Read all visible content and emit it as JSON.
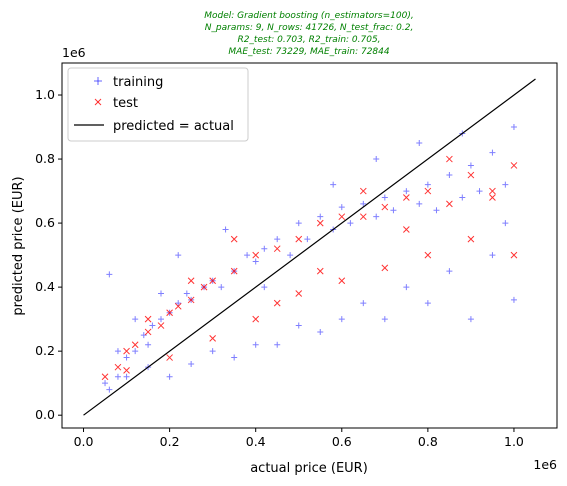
{
  "chart_data": {
    "type": "scatter",
    "title_lines": [
      "Model: Gradient boosting (n_estimators=100),",
      "N_params: 9, N_rows: 41726, N_test_frac: 0.2,",
      "R2_test: 0.703, R2_train: 0.705,",
      "MAE_test: 73229, MAE_train: 72844"
    ],
    "xlabel": "actual price (EUR)",
    "ylabel": "predicted price (EUR)",
    "x_offset_text": "1e6",
    "y_offset_text": "1e6",
    "xlim": [
      -0.05,
      1.1
    ],
    "ylim": [
      -0.04,
      1.1
    ],
    "x_ticks": [
      0.0,
      0.2,
      0.4,
      0.6,
      0.8,
      1.0
    ],
    "x_tick_labels": [
      "0.0",
      "0.2",
      "0.4",
      "0.6",
      "0.8",
      "1.0"
    ],
    "y_ticks": [
      0.0,
      0.2,
      0.4,
      0.6,
      0.8,
      1.0
    ],
    "y_tick_labels": [
      "0.0",
      "0.2",
      "0.4",
      "0.6",
      "0.8",
      "1.0"
    ],
    "legend_position": "upper-left",
    "series": [
      {
        "name": "training",
        "marker": "+",
        "color": "#0000ff",
        "x": [
          0.05,
          0.06,
          0.08,
          0.1,
          0.12,
          0.14,
          0.15,
          0.16,
          0.18,
          0.2,
          0.22,
          0.24,
          0.25,
          0.28,
          0.3,
          0.32,
          0.35,
          0.38,
          0.4,
          0.42,
          0.45,
          0.48,
          0.5,
          0.52,
          0.55,
          0.58,
          0.6,
          0.62,
          0.65,
          0.68,
          0.7,
          0.72,
          0.75,
          0.78,
          0.8,
          0.82,
          0.85,
          0.88,
          0.9,
          0.92,
          0.95,
          0.98,
          1.0,
          0.06,
          0.1,
          0.15,
          0.2,
          0.25,
          0.3,
          0.35,
          0.4,
          0.5,
          0.6,
          0.7,
          0.8,
          0.9,
          1.0,
          0.12,
          0.18,
          0.45,
          0.55,
          0.65,
          0.75,
          0.85,
          0.95,
          0.08,
          0.22,
          0.33,
          0.42,
          0.58,
          0.68,
          0.78,
          0.88,
          0.98
        ],
        "y": [
          0.1,
          0.44,
          0.12,
          0.18,
          0.2,
          0.25,
          0.22,
          0.28,
          0.3,
          0.32,
          0.35,
          0.38,
          0.36,
          0.4,
          0.42,
          0.4,
          0.45,
          0.5,
          0.48,
          0.52,
          0.55,
          0.5,
          0.6,
          0.55,
          0.62,
          0.58,
          0.65,
          0.6,
          0.66,
          0.62,
          0.68,
          0.64,
          0.7,
          0.66,
          0.72,
          0.64,
          0.75,
          0.68,
          0.78,
          0.7,
          0.82,
          0.72,
          0.9,
          0.08,
          0.12,
          0.15,
          0.12,
          0.16,
          0.2,
          0.18,
          0.22,
          0.28,
          0.3,
          0.3,
          0.35,
          0.3,
          0.36,
          0.3,
          0.38,
          0.22,
          0.26,
          0.35,
          0.4,
          0.45,
          0.5,
          0.2,
          0.5,
          0.58,
          0.4,
          0.72,
          0.8,
          0.85,
          0.88,
          0.6
        ]
      },
      {
        "name": "test",
        "marker": "x",
        "color": "#ff0000",
        "x": [
          0.05,
          0.08,
          0.1,
          0.12,
          0.15,
          0.18,
          0.2,
          0.22,
          0.25,
          0.28,
          0.3,
          0.35,
          0.4,
          0.45,
          0.5,
          0.55,
          0.6,
          0.65,
          0.7,
          0.75,
          0.8,
          0.85,
          0.9,
          0.95,
          1.0,
          0.1,
          0.2,
          0.3,
          0.4,
          0.5,
          0.6,
          0.7,
          0.8,
          0.9,
          1.0,
          0.15,
          0.25,
          0.35,
          0.45,
          0.55,
          0.65,
          0.75,
          0.85,
          0.95
        ],
        "y": [
          0.12,
          0.15,
          0.2,
          0.22,
          0.26,
          0.28,
          0.32,
          0.34,
          0.36,
          0.4,
          0.42,
          0.45,
          0.5,
          0.52,
          0.55,
          0.6,
          0.62,
          0.62,
          0.65,
          0.68,
          0.7,
          0.66,
          0.75,
          0.7,
          0.78,
          0.14,
          0.18,
          0.24,
          0.3,
          0.38,
          0.42,
          0.46,
          0.5,
          0.55,
          0.5,
          0.3,
          0.42,
          0.55,
          0.35,
          0.45,
          0.7,
          0.58,
          0.8,
          0.68
        ]
      },
      {
        "name": "predicted = actual",
        "type": "line",
        "color": "#000000",
        "x": [
          0.0,
          1.05
        ],
        "y": [
          0.0,
          1.05
        ]
      }
    ]
  }
}
